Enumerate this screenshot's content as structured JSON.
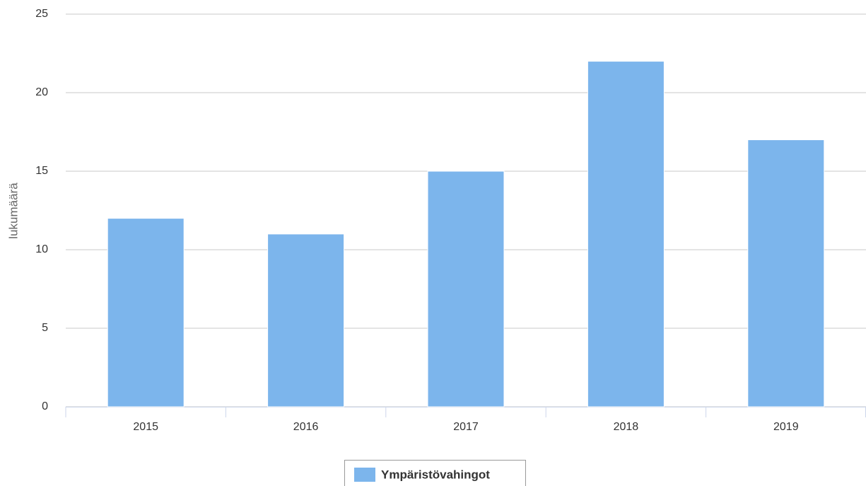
{
  "chart_data": {
    "type": "bar",
    "y_label": "lukumäärä",
    "categories": [
      "2015",
      "2016",
      "2017",
      "2018",
      "2019"
    ],
    "series": [
      {
        "name": "Ympäristövahingot",
        "color": "#7cb5ec",
        "values": [
          12,
          11,
          15,
          22,
          17
        ]
      }
    ],
    "ylim": [
      0,
      25
    ],
    "yticks": [
      0,
      5,
      10,
      15,
      20,
      25
    ],
    "grid": true,
    "legend": "bottom"
  }
}
